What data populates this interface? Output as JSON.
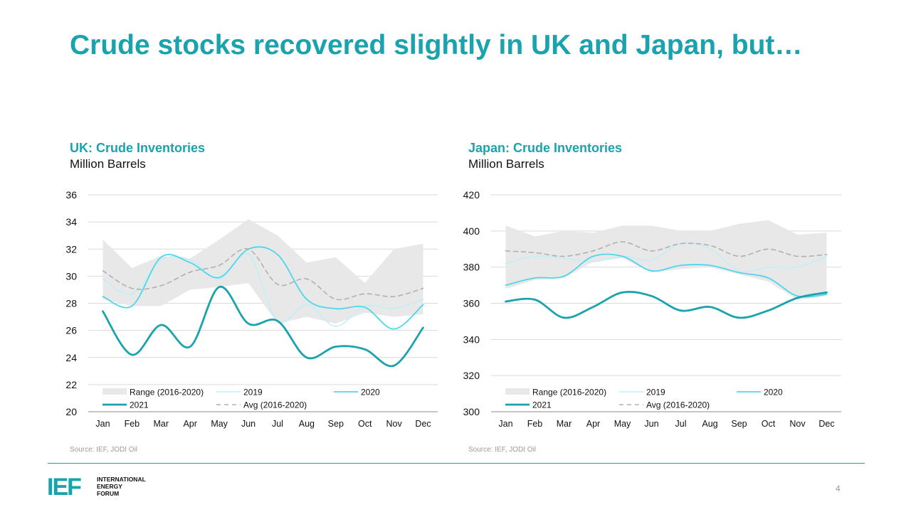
{
  "slide": {
    "title": "Crude stocks recovered slightly in UK and Japan, but…",
    "page_number": "4",
    "logo": {
      "mark": "IEF",
      "lines": [
        "INTERNATIONAL",
        "ENERGY",
        "FORUM"
      ]
    },
    "accent_color": "#1aa3ad"
  },
  "chart_data": [
    {
      "type": "line",
      "title": "UK: Crude Inventories",
      "subtitle": "Million Barrels",
      "source": "Source: IEF, JODI Oil",
      "categories": [
        "Jan",
        "Feb",
        "Mar",
        "Apr",
        "May",
        "Jun",
        "Jul",
        "Aug",
        "Sep",
        "Oct",
        "Nov",
        "Dec"
      ],
      "ylim": [
        20,
        36
      ],
      "yticks": [
        20,
        22,
        24,
        26,
        28,
        30,
        32,
        34,
        36
      ],
      "grid": true,
      "legend_position": "bottom",
      "range": {
        "name": "Range (2016-2020)",
        "color": "#e8e8e8",
        "low": [
          28.3,
          27.8,
          27.8,
          29.0,
          29.2,
          29.5,
          26.5,
          27.0,
          26.5,
          27.3,
          27.0,
          27.2
        ],
        "high": [
          32.7,
          30.6,
          31.5,
          31.3,
          32.7,
          34.2,
          33.0,
          31.0,
          31.4,
          29.5,
          32.0,
          32.4
        ]
      },
      "series": [
        {
          "name": "2019",
          "color": "#bfeff7",
          "width": 1.5,
          "dash": "",
          "values": [
            29.8,
            28.7,
            31.2,
            31.2,
            29.8,
            31.6,
            26.7,
            27.9,
            26.3,
            27.8,
            27.6,
            28.3
          ]
        },
        {
          "name": "2020",
          "color": "#4fd6ea",
          "width": 1.8,
          "dash": "",
          "values": [
            28.5,
            27.8,
            31.4,
            31.0,
            29.9,
            32.0,
            31.6,
            28.3,
            27.6,
            27.7,
            26.1,
            27.9
          ]
        },
        {
          "name": "2021",
          "color": "#1aa3ad",
          "width": 2.8,
          "dash": "",
          "values": [
            27.4,
            24.2,
            26.4,
            24.8,
            29.2,
            26.5,
            26.7,
            24.0,
            24.8,
            24.6,
            23.4,
            26.2
          ]
        },
        {
          "name": "Avg (2016-2020)",
          "color": "#b0b0b0",
          "width": 1.6,
          "dash": "6,5",
          "values": [
            30.4,
            29.1,
            29.3,
            30.3,
            30.8,
            32.0,
            29.4,
            29.8,
            28.3,
            28.7,
            28.5,
            29.1
          ]
        }
      ]
    },
    {
      "type": "line",
      "title": "Japan: Crude Inventories",
      "subtitle": "Million Barrels",
      "source": "Source: IEF, JODI Oil",
      "categories": [
        "Jan",
        "Feb",
        "Mar",
        "Apr",
        "May",
        "Jun",
        "Jul",
        "Aug",
        "Sep",
        "Oct",
        "Nov",
        "Dec"
      ],
      "ylim": [
        300,
        420
      ],
      "yticks": [
        300,
        320,
        340,
        360,
        380,
        400,
        420
      ],
      "grid": true,
      "legend_position": "bottom",
      "range": {
        "name": "Range (2016-2020)",
        "color": "#e8e8e8",
        "low": [
          368,
          373,
          374,
          383,
          385,
          377,
          379,
          380,
          376,
          372,
          362,
          364
        ],
        "high": [
          403,
          397,
          400,
          399,
          403,
          403,
          400,
          400,
          404,
          406,
          398,
          399
        ]
      },
      "series": [
        {
          "name": "2019",
          "color": "#bfeff7",
          "width": 1.5,
          "dash": "",
          "values": [
            382,
            386,
            385,
            383,
            386,
            384,
            393,
            390,
            378,
            380,
            380,
            386
          ]
        },
        {
          "name": "2020",
          "color": "#4fd6ea",
          "width": 1.8,
          "dash": "",
          "values": [
            370,
            374,
            375,
            386,
            386,
            378,
            381,
            381,
            377,
            374,
            364,
            365
          ]
        },
        {
          "name": "2021",
          "color": "#1aa3ad",
          "width": 2.8,
          "dash": "",
          "values": [
            361,
            362,
            352,
            358,
            366,
            364,
            356,
            358,
            352,
            356,
            363,
            366
          ]
        },
        {
          "name": "Avg (2016-2020)",
          "color": "#b0b0b0",
          "width": 1.6,
          "dash": "6,5",
          "values": [
            389,
            388,
            386,
            389,
            394,
            389,
            393,
            392,
            386,
            390,
            386,
            387
          ]
        }
      ]
    }
  ]
}
